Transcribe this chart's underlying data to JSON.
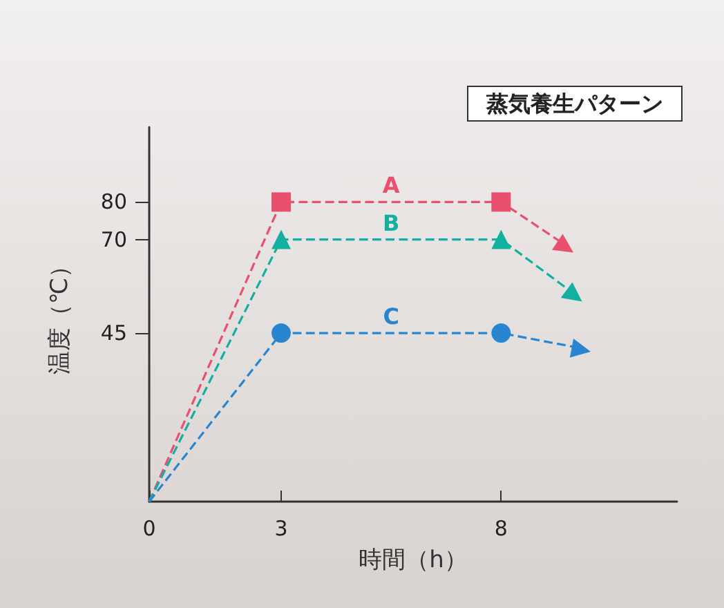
{
  "chart_data": {
    "type": "line",
    "title": "蒸気養生パターン",
    "xlabel": "時間（h）",
    "ylabel": "温度（℃）",
    "xlim": [
      0,
      12
    ],
    "xticks": [
      0,
      3,
      8
    ],
    "ylim": [
      0,
      100
    ],
    "yticks": [
      45,
      70,
      80
    ],
    "grid": false,
    "legend": false,
    "line_style": "dashed",
    "series": [
      {
        "name": "A",
        "color": "#e8506e",
        "marker": "square",
        "x": [
          0,
          3,
          8,
          9.4
        ],
        "values": [
          0,
          80,
          80,
          69
        ]
      },
      {
        "name": "B",
        "color": "#12b0a0",
        "marker": "triangle",
        "x": [
          0,
          3,
          8,
          9.6
        ],
        "values": [
          0,
          70,
          70,
          56
        ]
      },
      {
        "name": "C",
        "color": "#2a85d0",
        "marker": "circle",
        "x": [
          0,
          3,
          8,
          9.8
        ],
        "values": [
          0,
          45,
          45,
          41
        ]
      }
    ]
  }
}
